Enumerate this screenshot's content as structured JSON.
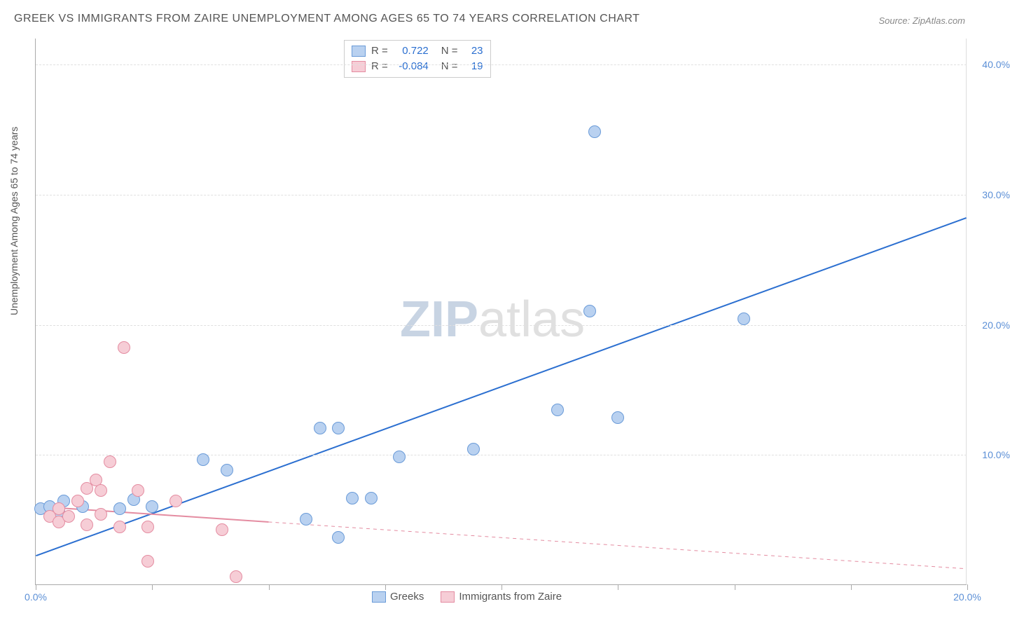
{
  "title": "GREEK VS IMMIGRANTS FROM ZAIRE UNEMPLOYMENT AMONG AGES 65 TO 74 YEARS CORRELATION CHART",
  "source": "Source: ZipAtlas.com",
  "ylabel": "Unemployment Among Ages 65 to 74 years",
  "watermark_zip": "ZIP",
  "watermark_atlas": "atlas",
  "chart": {
    "type": "scatter",
    "xlim": [
      0,
      20
    ],
    "ylim": [
      0,
      42
    ],
    "xticks": [
      0,
      2.5,
      5,
      7.5,
      10,
      12.5,
      15,
      17.5,
      20
    ],
    "xtick_labels": {
      "0": "0.0%",
      "20": "20.0%"
    },
    "yticks": [
      10,
      20,
      30,
      40
    ],
    "ytick_labels": {
      "10": "10.0%",
      "20": "20.0%",
      "30": "30.0%",
      "40": "40.0%"
    },
    "background_color": "#ffffff",
    "grid_color": "#e0e0e0",
    "axis_color": "#aaaaaa",
    "tick_label_color": "#5b8fd6",
    "series": [
      {
        "name": "Greeks",
        "label": "Greeks",
        "fill": "#b9d1f0",
        "stroke": "#6a9bd8",
        "marker_size": 18,
        "R_label": "R =",
        "R": "0.722",
        "N_label": "N =",
        "N": "23",
        "trend": {
          "x1": 0,
          "y1": 2.2,
          "x2": 20,
          "y2": 28.2,
          "dash": false,
          "color": "#2b6fd0",
          "width": 2
        },
        "points": [
          [
            0.1,
            5.8
          ],
          [
            0.3,
            6.0
          ],
          [
            0.5,
            5.6
          ],
          [
            0.6,
            6.4
          ],
          [
            1.0,
            6.0
          ],
          [
            1.8,
            5.8
          ],
          [
            2.1,
            6.5
          ],
          [
            2.5,
            6.0
          ],
          [
            3.6,
            9.6
          ],
          [
            4.1,
            8.8
          ],
          [
            5.8,
            5.0
          ],
          [
            6.1,
            12.0
          ],
          [
            6.5,
            12.0
          ],
          [
            6.5,
            3.6
          ],
          [
            6.8,
            6.6
          ],
          [
            7.2,
            6.6
          ],
          [
            7.8,
            9.8
          ],
          [
            9.4,
            10.4
          ],
          [
            11.2,
            13.4
          ],
          [
            11.9,
            21.0
          ],
          [
            12.5,
            12.8
          ],
          [
            12.0,
            34.8
          ],
          [
            15.2,
            20.4
          ]
        ]
      },
      {
        "name": "Immigrants from Zaire",
        "label": "Immigrants from Zaire",
        "fill": "#f6cdd6",
        "stroke": "#e48ca1",
        "marker_size": 18,
        "R_label": "R =",
        "R": "-0.084",
        "N_label": "N =",
        "N": "19",
        "trend": {
          "x1": 0,
          "y1": 6.0,
          "x2": 20,
          "y2": 1.2,
          "dash_after": 5.0,
          "color": "#e48ca1",
          "width": 2
        },
        "points": [
          [
            0.3,
            5.2
          ],
          [
            0.5,
            5.8
          ],
          [
            0.5,
            4.8
          ],
          [
            0.7,
            5.2
          ],
          [
            0.9,
            6.4
          ],
          [
            1.1,
            7.4
          ],
          [
            1.1,
            4.6
          ],
          [
            1.3,
            8.0
          ],
          [
            1.4,
            5.4
          ],
          [
            1.4,
            7.2
          ],
          [
            1.6,
            9.4
          ],
          [
            1.8,
            4.4
          ],
          [
            1.9,
            18.2
          ],
          [
            2.2,
            7.2
          ],
          [
            2.4,
            4.4
          ],
          [
            2.4,
            1.8
          ],
          [
            3.0,
            6.4
          ],
          [
            4.0,
            4.2
          ],
          [
            4.3,
            0.6
          ]
        ]
      }
    ]
  }
}
